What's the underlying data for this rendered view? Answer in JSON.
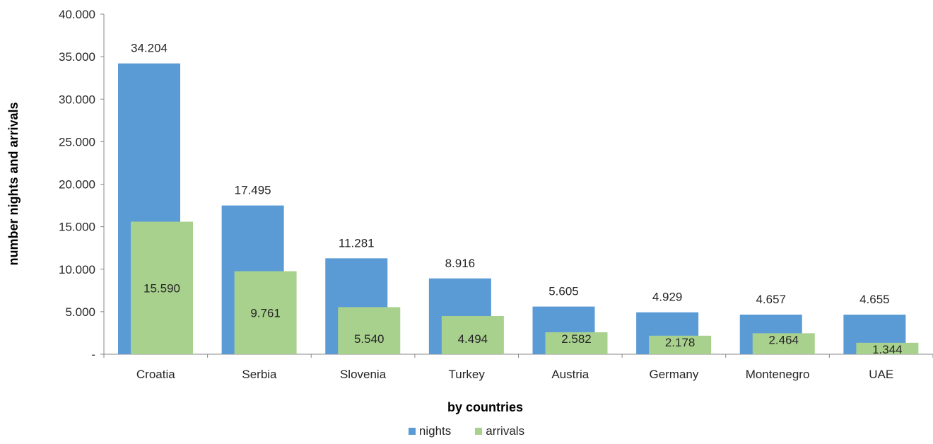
{
  "chart_data": {
    "type": "bar",
    "xlabel": "by countries",
    "ylabel": "number nights and arrivals",
    "ylim": [
      0,
      40000
    ],
    "yticks": [
      0,
      5000,
      10000,
      15000,
      20000,
      25000,
      30000,
      35000,
      40000
    ],
    "ytick_labels": [
      "-",
      "5.000",
      "10.000",
      "15.000",
      "20.000",
      "25.000",
      "30.000",
      "35.000",
      "40.000"
    ],
    "grid": false,
    "legend_position": "bottom",
    "categories": [
      "Croatia",
      "Serbia",
      "Slovenia",
      "Turkey",
      "Austria",
      "Germany",
      "Montenegro",
      "UAE"
    ],
    "series": [
      {
        "name": "nights",
        "color": "#5b9bd5",
        "values": [
          34204,
          17495,
          11281,
          8916,
          5605,
          4929,
          4657,
          4655
        ],
        "labels": [
          "34.204",
          "17.495",
          "11.281",
          "8.916",
          "5.605",
          "4.929",
          "4.657",
          "4.655"
        ]
      },
      {
        "name": "arrivals",
        "color": "#a9d18e",
        "values": [
          15590,
          9761,
          5540,
          4494,
          2582,
          2178,
          2464,
          1344
        ],
        "labels": [
          "15.590",
          "9.761",
          "5.540",
          "4.494",
          "2.582",
          "2.178",
          "2.464",
          "1.344"
        ]
      }
    ]
  }
}
